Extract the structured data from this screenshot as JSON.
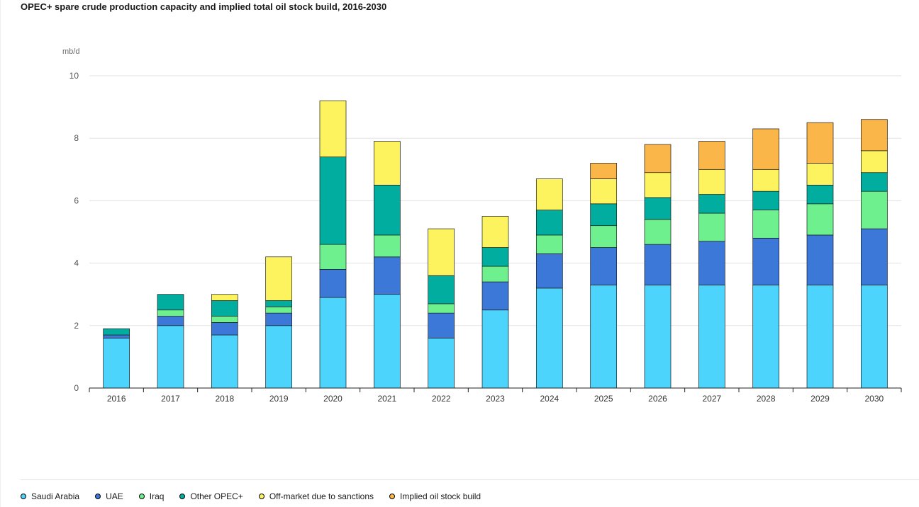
{
  "chart_data": {
    "type": "bar",
    "stacked": true,
    "title": "OPEC+ spare crude production capacity and implied total oil stock build, 2016-2030",
    "ylabel": "mb/d",
    "xlabel": "",
    "ylim": [
      0,
      10
    ],
    "yticks": [
      "0",
      "2",
      "4",
      "6",
      "8",
      "10"
    ],
    "grid": true,
    "legend_position": "bottom-left",
    "categories": [
      "2016",
      "2017",
      "2018",
      "2019",
      "2020",
      "2021",
      "2022",
      "2023",
      "2024",
      "2025",
      "2026",
      "2027",
      "2028",
      "2029",
      "2030"
    ],
    "series": [
      {
        "name": "Saudi Arabia",
        "color": "#4dd4fc",
        "values": [
          1.6,
          2.0,
          1.7,
          2.0,
          2.9,
          3.0,
          1.6,
          2.5,
          3.2,
          3.3,
          3.3,
          3.3,
          3.3,
          3.3,
          3.3
        ]
      },
      {
        "name": "UAE",
        "color": "#3b78d8",
        "values": [
          0.1,
          0.3,
          0.4,
          0.4,
          0.9,
          1.2,
          0.8,
          0.9,
          1.1,
          1.2,
          1.3,
          1.4,
          1.5,
          1.6,
          1.8
        ]
      },
      {
        "name": "Iraq",
        "color": "#6ef08e",
        "values": [
          0.0,
          0.2,
          0.2,
          0.2,
          0.8,
          0.7,
          0.3,
          0.5,
          0.6,
          0.7,
          0.8,
          0.9,
          0.9,
          1.0,
          1.2
        ]
      },
      {
        "name": "Other OPEC+",
        "color": "#00ad9f",
        "values": [
          0.2,
          0.5,
          0.5,
          0.2,
          2.8,
          1.6,
          0.9,
          0.6,
          0.8,
          0.7,
          0.7,
          0.6,
          0.6,
          0.6,
          0.6
        ]
      },
      {
        "name": "Off-market due to sanctions",
        "color": "#fcf35e",
        "values": [
          0.0,
          0.0,
          0.2,
          1.4,
          1.8,
          1.4,
          1.5,
          1.0,
          1.0,
          0.8,
          0.8,
          0.8,
          0.7,
          0.7,
          0.7
        ]
      },
      {
        "name": "Implied oil stock build",
        "color": "#fbb64a",
        "values": [
          0.0,
          0.0,
          0.0,
          0.0,
          0.0,
          0.0,
          0.0,
          0.0,
          0.0,
          0.5,
          0.9,
          0.9,
          1.3,
          1.3,
          1.0
        ]
      }
    ]
  }
}
